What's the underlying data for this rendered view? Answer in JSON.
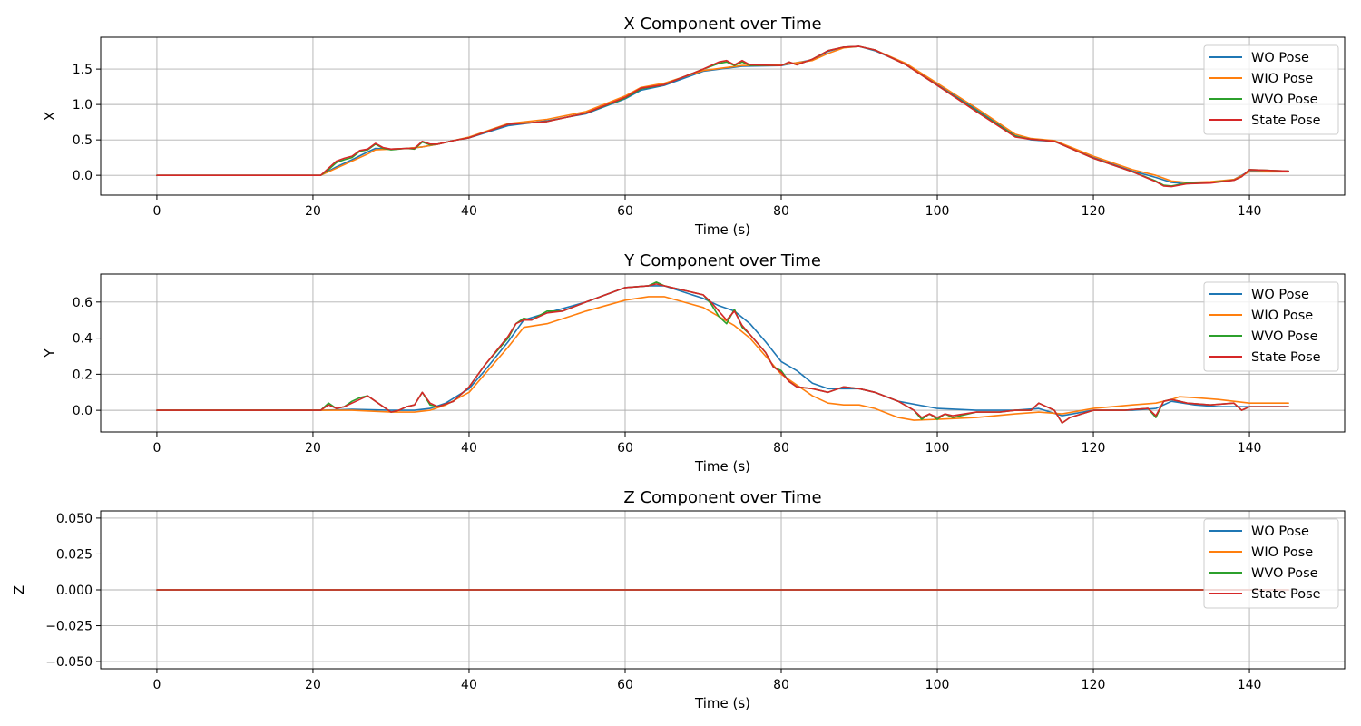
{
  "colors": {
    "wo": "#1f77b4",
    "wio": "#ff7f0e",
    "wvo": "#2ca02c",
    "state": "#d62728"
  },
  "chart_data": [
    {
      "type": "line",
      "title": "X Component over Time",
      "xlabel": "Time (s)",
      "ylabel": "X",
      "xlim": [
        -7.2,
        152.2
      ],
      "ylim": [
        -0.28,
        1.95
      ],
      "xticks": [
        0,
        20,
        40,
        60,
        80,
        100,
        120,
        140
      ],
      "xtick_labels": [
        "0",
        "20",
        "40",
        "60",
        "80",
        "100",
        "120",
        "140"
      ],
      "yticks": [
        0.0,
        0.5,
        1.0,
        1.5
      ],
      "ytick_labels": [
        "0.0",
        "0.5",
        "1.0",
        "1.5"
      ],
      "grid": true,
      "legend": "top-right",
      "series": [
        {
          "name": "WO Pose",
          "color_key": "wo",
          "x": [
            0,
            21,
            23,
            25,
            27,
            28,
            30,
            32,
            34,
            36,
            38,
            40,
            45,
            50,
            55,
            60,
            62,
            65,
            70,
            75,
            80,
            84,
            86,
            88,
            90,
            92,
            96,
            100,
            105,
            110,
            112,
            115,
            120,
            125,
            128,
            130,
            132,
            135,
            138,
            140,
            145
          ],
          "y": [
            0,
            0,
            0.12,
            0.22,
            0.33,
            0.38,
            0.37,
            0.38,
            0.4,
            0.44,
            0.49,
            0.53,
            0.7,
            0.77,
            0.87,
            1.08,
            1.2,
            1.27,
            1.47,
            1.54,
            1.55,
            1.63,
            1.75,
            1.81,
            1.82,
            1.76,
            1.57,
            1.28,
            0.93,
            0.56,
            0.5,
            0.48,
            0.25,
            0.06,
            -0.03,
            -0.1,
            -0.12,
            -0.1,
            -0.06,
            0.06,
            0.06
          ]
        },
        {
          "name": "WIO Pose",
          "color_key": "wio",
          "x": [
            0,
            21,
            23,
            25,
            27,
            28,
            30,
            32,
            34,
            36,
            38,
            40,
            45,
            50,
            55,
            60,
            62,
            65,
            70,
            75,
            80,
            84,
            86,
            88,
            90,
            92,
            96,
            100,
            105,
            110,
            112,
            115,
            120,
            125,
            128,
            130,
            132,
            135,
            138,
            140,
            145
          ],
          "y": [
            0,
            0,
            0.1,
            0.2,
            0.3,
            0.36,
            0.37,
            0.38,
            0.4,
            0.44,
            0.49,
            0.54,
            0.73,
            0.79,
            0.9,
            1.12,
            1.24,
            1.3,
            1.48,
            1.55,
            1.56,
            1.62,
            1.72,
            1.8,
            1.82,
            1.77,
            1.58,
            1.3,
            0.95,
            0.58,
            0.52,
            0.49,
            0.27,
            0.08,
            0.0,
            -0.08,
            -0.1,
            -0.09,
            -0.06,
            0.05,
            0.05
          ]
        },
        {
          "name": "WVO Pose",
          "color_key": "wvo",
          "x": [
            0,
            21,
            22,
            23,
            24,
            25,
            26,
            27,
            28,
            29,
            30,
            32,
            33,
            34,
            35,
            36,
            38,
            40,
            45,
            50,
            55,
            60,
            62,
            65,
            70,
            72,
            73,
            74,
            75,
            76,
            80,
            81,
            82,
            84,
            86,
            88,
            90,
            92,
            96,
            100,
            105,
            110,
            112,
            115,
            120,
            125,
            128,
            129,
            130,
            132,
            135,
            138,
            139,
            140,
            145
          ],
          "y": [
            0,
            0,
            0.08,
            0.18,
            0.22,
            0.25,
            0.34,
            0.36,
            0.44,
            0.38,
            0.36,
            0.38,
            0.37,
            0.47,
            0.43,
            0.44,
            0.49,
            0.53,
            0.72,
            0.76,
            0.88,
            1.09,
            1.22,
            1.28,
            1.5,
            1.58,
            1.6,
            1.55,
            1.6,
            1.55,
            1.55,
            1.6,
            1.56,
            1.64,
            1.76,
            1.81,
            1.82,
            1.77,
            1.56,
            1.27,
            0.91,
            0.55,
            0.51,
            0.48,
            0.24,
            0.05,
            -0.08,
            -0.14,
            -0.15,
            -0.11,
            -0.1,
            -0.07,
            -0.02,
            0.08,
            0.06
          ]
        },
        {
          "name": "State Pose",
          "color_key": "state",
          "x": [
            0,
            21,
            22,
            23,
            24,
            25,
            26,
            27,
            28,
            29,
            30,
            32,
            33,
            34,
            35,
            36,
            38,
            40,
            45,
            50,
            55,
            60,
            62,
            65,
            70,
            72,
            73,
            74,
            75,
            76,
            80,
            81,
            82,
            84,
            86,
            88,
            90,
            92,
            96,
            100,
            105,
            110,
            112,
            115,
            120,
            125,
            128,
            129,
            130,
            132,
            135,
            138,
            139,
            140,
            145
          ],
          "y": [
            0,
            0,
            0.1,
            0.2,
            0.24,
            0.27,
            0.35,
            0.37,
            0.45,
            0.39,
            0.37,
            0.38,
            0.38,
            0.48,
            0.44,
            0.44,
            0.49,
            0.53,
            0.72,
            0.76,
            0.88,
            1.1,
            1.23,
            1.28,
            1.5,
            1.6,
            1.62,
            1.56,
            1.62,
            1.56,
            1.55,
            1.6,
            1.56,
            1.64,
            1.76,
            1.81,
            1.82,
            1.77,
            1.56,
            1.27,
            0.9,
            0.54,
            0.51,
            0.48,
            0.24,
            0.05,
            -0.09,
            -0.15,
            -0.16,
            -0.12,
            -0.11,
            -0.07,
            -0.02,
            0.08,
            0.06
          ]
        }
      ]
    },
    {
      "type": "line",
      "title": "Y Component over Time",
      "xlabel": "Time (s)",
      "ylabel": "Y",
      "xlim": [
        -7.2,
        152.2
      ],
      "ylim": [
        -0.12,
        0.755
      ],
      "xticks": [
        0,
        20,
        40,
        60,
        80,
        100,
        120,
        140
      ],
      "xtick_labels": [
        "0",
        "20",
        "40",
        "60",
        "80",
        "100",
        "120",
        "140"
      ],
      "yticks": [
        0.0,
        0.2,
        0.4,
        0.6
      ],
      "ytick_labels": [
        "0.0",
        "0.2",
        "0.4",
        "0.6"
      ],
      "grid": true,
      "legend": "top-right",
      "series": [
        {
          "name": "WO Pose",
          "color_key": "wo",
          "x": [
            0,
            21,
            25,
            30,
            33,
            35,
            37,
            40,
            42,
            45,
            47,
            50,
            55,
            60,
            63,
            65,
            70,
            72,
            74,
            76,
            78,
            80,
            82,
            84,
            86,
            88,
            90,
            92,
            95,
            100,
            105,
            110,
            113,
            116,
            120,
            125,
            128,
            130,
            133,
            136,
            140,
            145
          ],
          "y": [
            0,
            0,
            0.005,
            0.0,
            0.0,
            0.01,
            0.04,
            0.12,
            0.22,
            0.38,
            0.5,
            0.54,
            0.6,
            0.68,
            0.69,
            0.69,
            0.62,
            0.58,
            0.55,
            0.48,
            0.38,
            0.27,
            0.22,
            0.15,
            0.12,
            0.12,
            0.12,
            0.1,
            0.05,
            0.01,
            0.0,
            0.0,
            0.01,
            -0.03,
            0.0,
            0.0,
            0.01,
            0.05,
            0.03,
            0.02,
            0.02,
            0.02
          ]
        },
        {
          "name": "WIO Pose",
          "color_key": "wio",
          "x": [
            0,
            21,
            25,
            30,
            33,
            35,
            37,
            40,
            42,
            45,
            47,
            50,
            55,
            60,
            63,
            65,
            70,
            72,
            74,
            76,
            78,
            80,
            82,
            84,
            86,
            88,
            90,
            92,
            95,
            97,
            100,
            105,
            110,
            113,
            116,
            120,
            125,
            128,
            130,
            131,
            133,
            136,
            140,
            145
          ],
          "y": [
            0,
            0,
            0.0,
            -0.01,
            -0.01,
            0.0,
            0.03,
            0.1,
            0.2,
            0.35,
            0.46,
            0.48,
            0.55,
            0.61,
            0.63,
            0.63,
            0.57,
            0.52,
            0.47,
            0.4,
            0.3,
            0.2,
            0.14,
            0.08,
            0.04,
            0.03,
            0.03,
            0.01,
            -0.04,
            -0.055,
            -0.05,
            -0.04,
            -0.02,
            -0.01,
            -0.02,
            0.01,
            0.03,
            0.04,
            0.06,
            0.075,
            0.07,
            0.06,
            0.04,
            0.04
          ]
        },
        {
          "name": "WVO Pose",
          "color_key": "wvo",
          "x": [
            0,
            21,
            22,
            23,
            24,
            25,
            26,
            27,
            28,
            29,
            30,
            31,
            32,
            33,
            34,
            35,
            36,
            38,
            40,
            42,
            45,
            46,
            47,
            48,
            50,
            52,
            55,
            60,
            63,
            64,
            65,
            70,
            71,
            72,
            73,
            74,
            75,
            76,
            78,
            79,
            80,
            81,
            82,
            84,
            86,
            88,
            90,
            92,
            95,
            97,
            98,
            99,
            100,
            101,
            102,
            105,
            108,
            110,
            112,
            113,
            115,
            116,
            117,
            120,
            124,
            127,
            128,
            129,
            130,
            132,
            135,
            138,
            139,
            140,
            145
          ],
          "y": [
            0,
            0,
            0.04,
            0.01,
            0.02,
            0.05,
            0.07,
            0.08,
            0.05,
            0.02,
            -0.01,
            0.0,
            0.02,
            0.03,
            0.1,
            0.03,
            0.02,
            0.05,
            0.13,
            0.25,
            0.4,
            0.48,
            0.51,
            0.5,
            0.55,
            0.55,
            0.6,
            0.68,
            0.69,
            0.71,
            0.69,
            0.64,
            0.59,
            0.52,
            0.48,
            0.56,
            0.46,
            0.42,
            0.32,
            0.24,
            0.22,
            0.16,
            0.13,
            0.12,
            0.1,
            0.13,
            0.12,
            0.1,
            0.05,
            0.0,
            -0.05,
            -0.02,
            -0.05,
            -0.02,
            -0.04,
            -0.01,
            -0.01,
            0.0,
            0.0,
            0.04,
            0.0,
            -0.07,
            -0.04,
            0.0,
            0.0,
            0.01,
            -0.04,
            0.05,
            0.06,
            0.04,
            0.03,
            0.04,
            0.0,
            0.02,
            0.02
          ]
        },
        {
          "name": "State Pose",
          "color_key": "state",
          "x": [
            0,
            21,
            22,
            23,
            24,
            25,
            26,
            27,
            28,
            29,
            30,
            31,
            32,
            33,
            34,
            35,
            36,
            38,
            40,
            42,
            45,
            46,
            47,
            48,
            50,
            52,
            55,
            60,
            63,
            64,
            65,
            70,
            71,
            72,
            73,
            74,
            75,
            76,
            78,
            79,
            80,
            81,
            82,
            84,
            86,
            88,
            90,
            92,
            95,
            97,
            98,
            99,
            100,
            101,
            102,
            105,
            108,
            110,
            112,
            113,
            115,
            116,
            117,
            120,
            124,
            127,
            128,
            129,
            130,
            132,
            135,
            138,
            139,
            140,
            145
          ],
          "y": [
            0,
            0,
            0.03,
            0.01,
            0.02,
            0.04,
            0.06,
            0.08,
            0.05,
            0.02,
            -0.01,
            0.0,
            0.02,
            0.03,
            0.1,
            0.04,
            0.02,
            0.05,
            0.13,
            0.25,
            0.41,
            0.48,
            0.5,
            0.5,
            0.54,
            0.55,
            0.6,
            0.68,
            0.69,
            0.7,
            0.69,
            0.64,
            0.6,
            0.55,
            0.5,
            0.55,
            0.47,
            0.42,
            0.32,
            0.24,
            0.21,
            0.16,
            0.13,
            0.12,
            0.1,
            0.13,
            0.12,
            0.1,
            0.05,
            0.0,
            -0.04,
            -0.02,
            -0.04,
            -0.02,
            -0.03,
            -0.01,
            -0.01,
            0.0,
            0.0,
            0.04,
            0.0,
            -0.07,
            -0.04,
            0.0,
            0.0,
            0.01,
            -0.03,
            0.05,
            0.06,
            0.04,
            0.03,
            0.04,
            0.0,
            0.02,
            0.02
          ]
        }
      ]
    },
    {
      "type": "line",
      "title": "Z Component over Time",
      "xlabel": "Time (s)",
      "ylabel": "Z",
      "xlim": [
        -7.2,
        152.2
      ],
      "ylim": [
        -0.055,
        0.055
      ],
      "xticks": [
        0,
        20,
        40,
        60,
        80,
        100,
        120,
        140
      ],
      "xtick_labels": [
        "0",
        "20",
        "40",
        "60",
        "80",
        "100",
        "120",
        "140"
      ],
      "yticks": [
        -0.05,
        -0.025,
        0.0,
        0.025,
        0.05
      ],
      "ytick_labels": [
        "−0.050",
        "−0.025",
        "0.000",
        "0.025",
        "0.050"
      ],
      "grid": true,
      "legend": "top-right",
      "series": [
        {
          "name": "WO Pose",
          "color_key": "wo",
          "x": [
            0,
            145
          ],
          "y": [
            0,
            0
          ]
        },
        {
          "name": "WIO Pose",
          "color_key": "wio",
          "x": [
            0,
            145
          ],
          "y": [
            0,
            0
          ]
        },
        {
          "name": "WVO Pose",
          "color_key": "wvo",
          "x": [
            0,
            145
          ],
          "y": [
            0,
            0
          ]
        },
        {
          "name": "State Pose",
          "color_key": "state",
          "x": [
            0,
            145
          ],
          "y": [
            0,
            0
          ]
        }
      ]
    }
  ]
}
